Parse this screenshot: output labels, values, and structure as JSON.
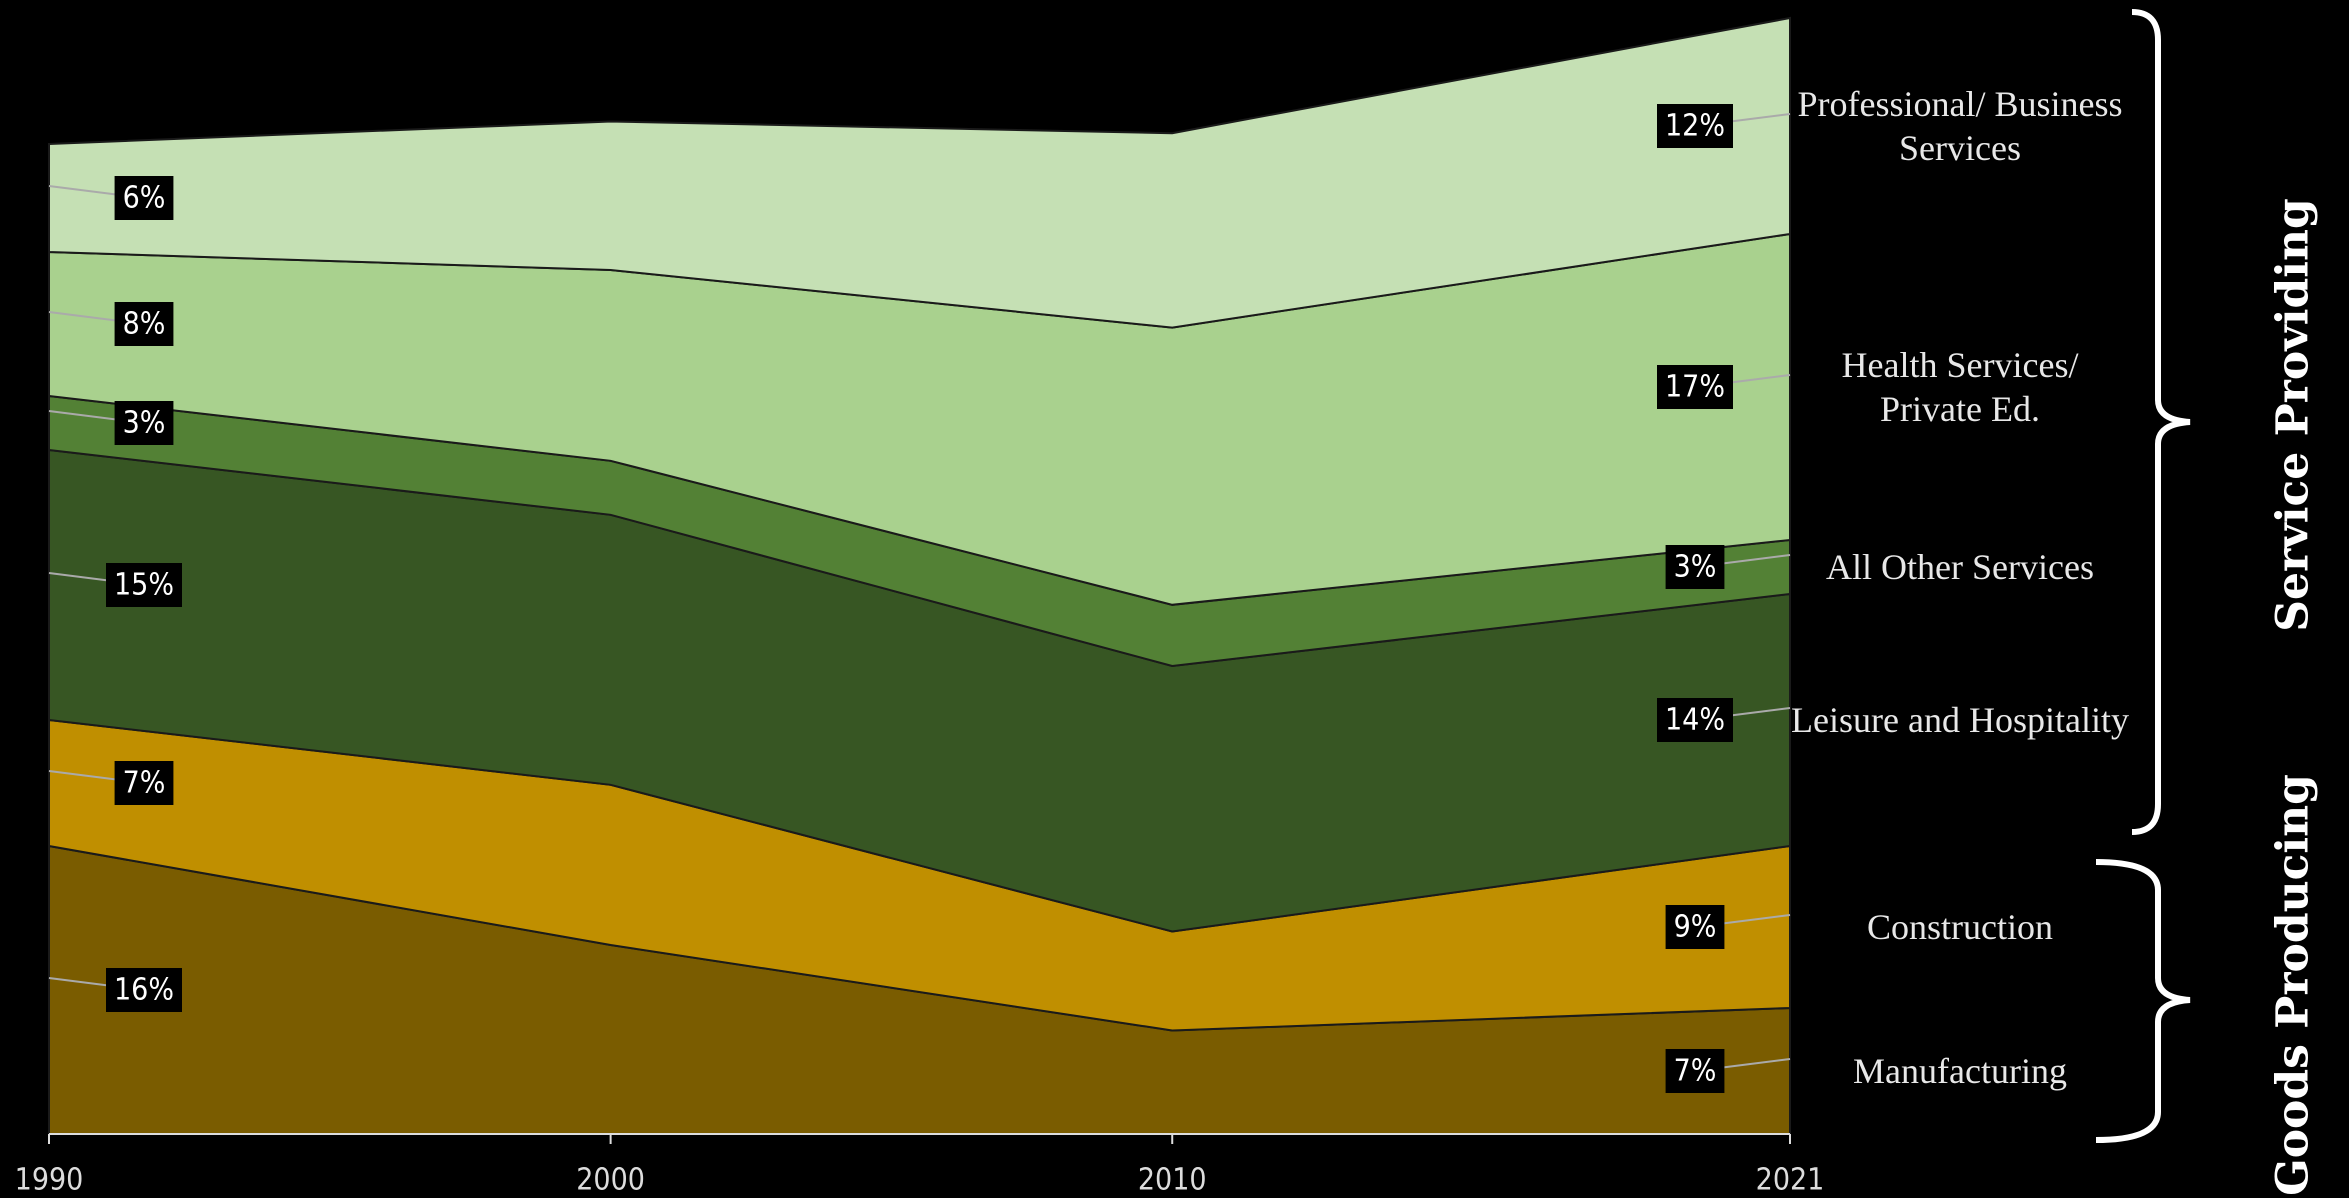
{
  "chart_data": {
    "type": "stacked-area",
    "x": [
      1990,
      2000,
      2010,
      2021
    ],
    "xlim": [
      1990,
      2021
    ],
    "xticks": [
      1990,
      2000,
      2010,
      2021
    ],
    "ylim": [
      0,
      62
    ],
    "series": [
      {
        "name": "Manufacturing",
        "color": "#7a5c00",
        "values": [
          16,
          10.5,
          5.75,
          7
        ],
        "value_labels": [
          "16%",
          null,
          null,
          "7%"
        ]
      },
      {
        "name": "Construction",
        "color": "#c08f00",
        "values": [
          7,
          8.9,
          5.5,
          9
        ],
        "value_labels": [
          "7%",
          null,
          null,
          "9%"
        ]
      },
      {
        "name": "Leisure and Hospitality",
        "color": "#375623",
        "values": [
          15,
          15,
          14.75,
          14
        ],
        "value_labels": [
          "15%",
          null,
          null,
          "14%"
        ]
      },
      {
        "name": "All Other Services",
        "color": "#538135",
        "values": [
          3,
          3,
          3.4,
          3
        ],
        "value_labels": [
          "3%",
          null,
          null,
          "3%"
        ]
      },
      {
        "name": "Health Services/ Private Ed.",
        "color": "#a9d18e",
        "values": [
          8,
          10.6,
          15.4,
          17
        ],
        "value_labels": [
          "8%",
          null,
          null,
          "17%"
        ]
      },
      {
        "name": "Professional/ Business Services",
        "color": "#c5e0b4",
        "values": [
          6,
          8.25,
          10.8,
          12
        ],
        "value_labels": [
          "6%",
          null,
          null,
          "12%"
        ]
      }
    ],
    "groups": [
      {
        "name": "Service Providing"
      },
      {
        "name": "Goods Producing"
      }
    ]
  }
}
